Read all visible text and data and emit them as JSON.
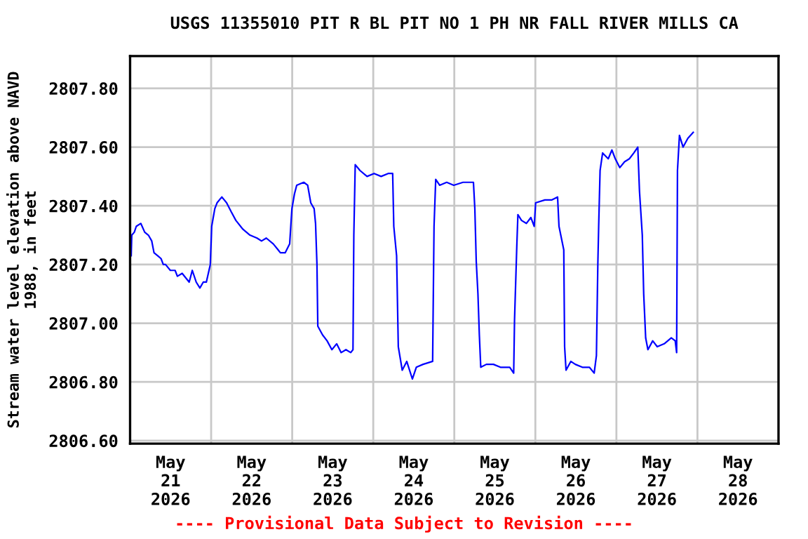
{
  "chart_data": {
    "type": "line",
    "title": "USGS 11355010 PIT R BL PIT NO 1 PH NR FALL RIVER MILLS CA",
    "ylabel": "Stream water level elevation above NAVD\n1988, in feet",
    "annotations": [
      "---- Provisional Data Subject to Revision ----"
    ],
    "x": [
      "2026-05-21T00:20",
      "2026-05-21T00:30",
      "2026-05-21T01:15",
      "2026-05-21T01:50",
      "2026-05-21T03:10",
      "2026-05-21T04:20",
      "2026-05-21T05:25",
      "2026-05-21T06:25",
      "2026-05-21T07:05",
      "2026-05-21T08:10",
      "2026-05-21T09:10",
      "2026-05-21T09:50",
      "2026-05-21T10:30",
      "2026-05-21T11:55",
      "2026-05-21T13:20",
      "2026-05-21T14:00",
      "2026-05-21T15:25",
      "2026-05-21T17:30",
      "2026-05-21T18:25",
      "2026-05-21T19:35",
      "2026-05-21T20:40",
      "2026-05-21T21:40",
      "2026-05-21T22:35",
      "2026-05-21T23:45",
      "2026-05-22T00:10",
      "2026-05-22T01:05",
      "2026-05-22T01:45",
      "2026-05-22T03:10",
      "2026-05-22T04:35",
      "2026-05-22T05:55",
      "2026-05-22T07:20",
      "2026-05-22T09:25",
      "2026-05-22T11:30",
      "2026-05-22T13:35",
      "2026-05-22T14:55",
      "2026-05-22T16:20",
      "2026-05-22T18:25",
      "2026-05-22T19:50",
      "2026-05-22T20:30",
      "2026-05-22T21:55",
      "2026-05-22T23:15",
      "2026-05-22T23:55",
      "2026-05-23T00:40",
      "2026-05-23T01:20",
      "2026-05-23T03:25",
      "2026-05-23T04:35",
      "2026-05-23T05:30",
      "2026-05-23T06:30",
      "2026-05-23T06:55",
      "2026-05-23T07:20",
      "2026-05-23T07:35",
      "2026-05-23T09:00",
      "2026-05-23T10:20",
      "2026-05-23T11:45",
      "2026-05-23T13:10",
      "2026-05-23T14:30",
      "2026-05-23T15:55",
      "2026-05-23T17:20",
      "2026-05-23T18:00",
      "2026-05-23T18:15",
      "2026-05-23T18:40",
      "2026-05-23T20:05",
      "2026-05-23T22:10",
      "2026-05-24T00:15",
      "2026-05-24T02:20",
      "2026-05-24T04:25",
      "2026-05-24T05:45",
      "2026-05-24T06:05",
      "2026-05-24T06:55",
      "2026-05-24T07:25",
      "2026-05-24T08:35",
      "2026-05-24T09:55",
      "2026-05-24T11:35",
      "2026-05-24T12:45",
      "2026-05-24T14:45",
      "2026-05-24T17:35",
      "2026-05-24T18:00",
      "2026-05-24T18:30",
      "2026-05-24T19:40",
      "2026-05-24T21:45",
      "2026-05-24T23:50",
      "2026-05-25T02:35",
      "2026-05-25T05:40",
      "2026-05-25T06:05",
      "2026-05-25T06:30",
      "2026-05-25T07:00",
      "2026-05-25T07:25",
      "2026-05-25T07:50",
      "2026-05-25T09:30",
      "2026-05-25T11:35",
      "2026-05-25T13:40",
      "2026-05-25T16:25",
      "2026-05-25T17:35",
      "2026-05-25T17:50",
      "2026-05-25T18:30",
      "2026-05-25T18:50",
      "2026-05-25T19:55",
      "2026-05-25T21:20",
      "2026-05-25T22:40",
      "2026-05-25T23:40",
      "2026-05-26T00:05",
      "2026-05-26T02:50",
      "2026-05-26T04:55",
      "2026-05-26T06:35",
      "2026-05-26T07:00",
      "2026-05-26T08:25",
      "2026-05-26T08:40",
      "2026-05-26T09:05",
      "2026-05-26T10:30",
      "2026-05-26T11:50",
      "2026-05-26T13:55",
      "2026-05-26T16:00",
      "2026-05-26T17:25",
      "2026-05-26T18:05",
      "2026-05-26T18:30",
      "2026-05-26T18:45",
      "2026-05-26T19:10",
      "2026-05-26T19:55",
      "2026-05-26T21:35",
      "2026-05-26T22:40",
      "2026-05-26T23:40",
      "2026-05-27T01:00",
      "2026-05-27T02:25",
      "2026-05-27T03:50",
      "2026-05-27T05:10",
      "2026-05-27T06:20",
      "2026-05-27T06:50",
      "2026-05-27T07:40",
      "2026-05-27T08:05",
      "2026-05-27T08:40",
      "2026-05-27T09:20",
      "2026-05-27T10:45",
      "2026-05-27T12:05",
      "2026-05-27T14:10",
      "2026-05-27T16:15",
      "2026-05-27T17:25",
      "2026-05-27T17:50",
      "2026-05-27T18:05",
      "2026-05-27T18:40",
      "2026-05-27T19:45",
      "2026-05-27T21:10",
      "2026-05-27T22:45"
    ],
    "series": [
      {
        "color": "#0000ff",
        "values": [
          2807.23,
          2807.3,
          2807.31,
          2807.33,
          2807.34,
          2807.31,
          2807.3,
          2807.28,
          2807.24,
          2807.23,
          2807.22,
          2807.2,
          2807.2,
          2807.18,
          2807.18,
          2807.16,
          2807.17,
          2807.14,
          2807.18,
          2807.14,
          2807.12,
          2807.14,
          2807.14,
          2807.2,
          2807.33,
          2807.39,
          2807.41,
          2807.43,
          2807.41,
          2807.38,
          2807.35,
          2807.32,
          2807.3,
          2807.29,
          2807.28,
          2807.29,
          2807.27,
          2807.25,
          2807.24,
          2807.24,
          2807.27,
          2807.39,
          2807.44,
          2807.47,
          2807.48,
          2807.47,
          2807.41,
          2807.39,
          2807.34,
          2807.2,
          2806.99,
          2806.96,
          2806.94,
          2806.91,
          2806.93,
          2806.9,
          2806.91,
          2806.9,
          2806.91,
          2807.3,
          2807.54,
          2807.52,
          2807.5,
          2807.51,
          2807.5,
          2807.51,
          2807.51,
          2807.33,
          2807.23,
          2806.92,
          2806.84,
          2806.87,
          2806.81,
          2806.85,
          2806.86,
          2806.87,
          2807.33,
          2807.49,
          2807.47,
          2807.48,
          2807.47,
          2807.48,
          2807.48,
          2807.39,
          2807.21,
          2807.1,
          2806.96,
          2806.85,
          2806.86,
          2806.86,
          2806.85,
          2806.85,
          2806.83,
          2807.01,
          2807.26,
          2807.37,
          2807.35,
          2807.34,
          2807.36,
          2807.33,
          2807.41,
          2807.42,
          2807.42,
          2807.43,
          2807.33,
          2807.25,
          2806.92,
          2806.84,
          2806.87,
          2806.86,
          2806.85,
          2806.85,
          2806.83,
          2806.89,
          2807.2,
          2807.33,
          2807.52,
          2807.58,
          2807.56,
          2807.59,
          2807.56,
          2807.53,
          2807.55,
          2807.56,
          2807.58,
          2807.6,
          2807.45,
          2807.3,
          2807.1,
          2806.95,
          2806.91,
          2806.94,
          2806.92,
          2806.93,
          2806.95,
          2806.94,
          2806.9,
          2807.52,
          2807.64,
          2807.6,
          2807.63,
          2807.65
        ]
      }
    ],
    "xlim": [
      "2026-05-21",
      "2026-05-29"
    ],
    "xticks": [
      {
        "value": "2026-05-21T12:00",
        "label": "May\n21\n2026"
      },
      {
        "value": "2026-05-22",
        "label": null
      },
      {
        "value": "2026-05-22T12:00",
        "label": "May\n22\n2026"
      },
      {
        "value": "2026-05-23",
        "label": null
      },
      {
        "value": "2026-05-23T12:00",
        "label": "May\n23\n2026"
      },
      {
        "value": "2026-05-24",
        "label": null
      },
      {
        "value": "2026-05-24T12:00",
        "label": "May\n24\n2026"
      },
      {
        "value": "2026-05-25",
        "label": null
      },
      {
        "value": "2026-05-25T12:00",
        "label": "May\n25\n2026"
      },
      {
        "value": "2026-05-26",
        "label": null
      },
      {
        "value": "2026-05-26T12:00",
        "label": "May\n26\n2026"
      },
      {
        "value": "2026-05-27",
        "label": null
      },
      {
        "value": "2026-05-27T12:00",
        "label": "May\n27\n2026"
      },
      {
        "value": "2026-05-28",
        "label": null
      },
      {
        "value": "2026-05-28T12:00",
        "label": "May\n28\n2026"
      }
    ],
    "ylim": [
      2806.59,
      2807.91
    ],
    "yticks": [
      {
        "value": 2806.6,
        "label": "2806.60"
      },
      {
        "value": 2806.8,
        "label": "2806.80"
      },
      {
        "value": 2807.0,
        "label": "2807.00"
      },
      {
        "value": 2807.2,
        "label": "2807.20"
      },
      {
        "value": 2807.4,
        "label": "2807.40"
      },
      {
        "value": 2807.6,
        "label": "2807.60"
      },
      {
        "value": 2807.8,
        "label": "2807.80"
      }
    ],
    "grid": true,
    "marker": "none",
    "line_style": "solid"
  }
}
